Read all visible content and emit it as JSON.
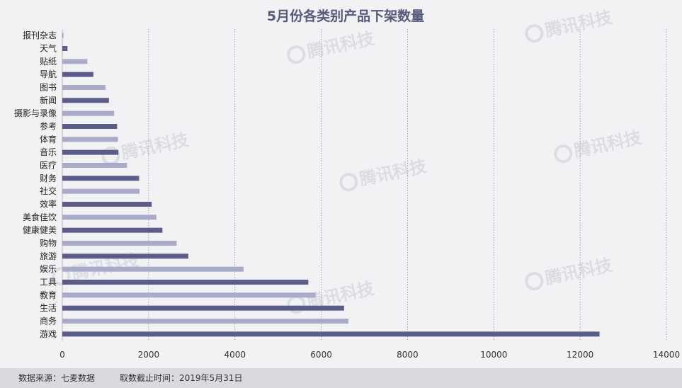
{
  "chart_data": {
    "type": "bar",
    "orientation": "horizontal",
    "title": "5月份各类别产品下架数量",
    "categories": [
      "报刊杂志",
      "天气",
      "贴纸",
      "导航",
      "图书",
      "新闻",
      "摄影与录像",
      "参考",
      "体育",
      "音乐",
      "医疗",
      "财务",
      "社交",
      "效率",
      "美食佳饮",
      "健康健美",
      "购物",
      "旅游",
      "娱乐",
      "工具",
      "教育",
      "生活",
      "商务",
      "游戏"
    ],
    "values": [
      30,
      120,
      580,
      720,
      1000,
      1080,
      1200,
      1270,
      1290,
      1300,
      1500,
      1780,
      1790,
      2070,
      2180,
      2320,
      2650,
      2920,
      4200,
      5700,
      5870,
      6530,
      6630,
      12450
    ],
    "xlim": [
      0,
      14000
    ],
    "xticks": [
      0,
      2000,
      4000,
      6000,
      8000,
      10000,
      12000,
      14000
    ],
    "grid": "vertical dotted",
    "colors": {
      "dark": "#5b5d88",
      "light": "#a9abc9"
    }
  },
  "watermark": "腾讯科技",
  "footer": {
    "source": "数据来源：七麦数据",
    "cutoff": "取数截止时间：2019年5月31日"
  }
}
